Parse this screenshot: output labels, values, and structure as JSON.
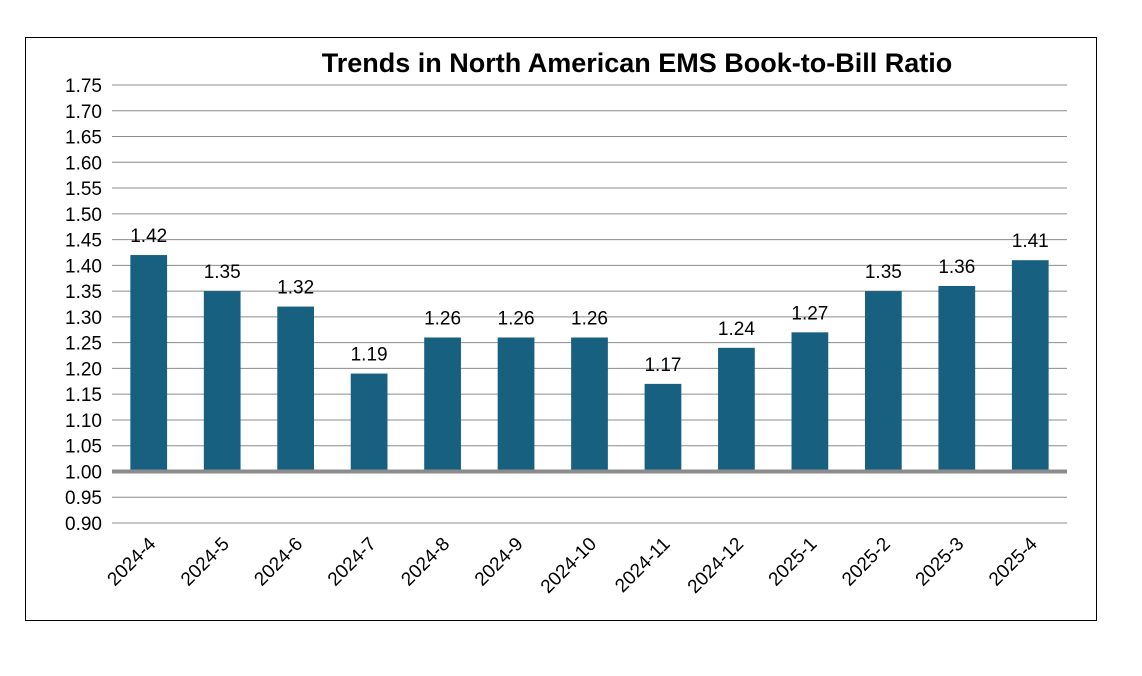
{
  "chart_data": {
    "type": "bar",
    "title": "Trends in North American EMS Book-to-Bill Ratio",
    "xlabel": "",
    "ylabel": "",
    "categories": [
      "2024-4",
      "2024-5",
      "2024-6",
      "2024-7",
      "2024-8",
      "2024-9",
      "2024-10",
      "2024-11",
      "2024-12",
      "2025-1",
      "2025-2",
      "2025-3",
      "2025-4"
    ],
    "values": [
      1.42,
      1.35,
      1.32,
      1.19,
      1.26,
      1.26,
      1.26,
      1.17,
      1.24,
      1.27,
      1.35,
      1.36,
      1.41
    ],
    "value_labels": [
      "1.42",
      "1.35",
      "1.32",
      "1.19",
      "1.26",
      "1.26",
      "1.26",
      "1.17",
      "1.24",
      "1.27",
      "1.35",
      "1.36",
      "1.41"
    ],
    "ylim": [
      0.9,
      1.75
    ],
    "y_step": 0.05,
    "y_tick_labels": [
      "0.90",
      "0.95",
      "1.00",
      "1.05",
      "1.10",
      "1.15",
      "1.20",
      "1.25",
      "1.30",
      "1.35",
      "1.40",
      "1.45",
      "1.50",
      "1.55",
      "1.60",
      "1.65",
      "1.70",
      "1.75"
    ],
    "baseline": 1.0,
    "grid": true,
    "legend": "none",
    "colors": {
      "bar": "#17607f",
      "grid": "#8c8c8c",
      "baseline": "#8c8c8c"
    }
  }
}
